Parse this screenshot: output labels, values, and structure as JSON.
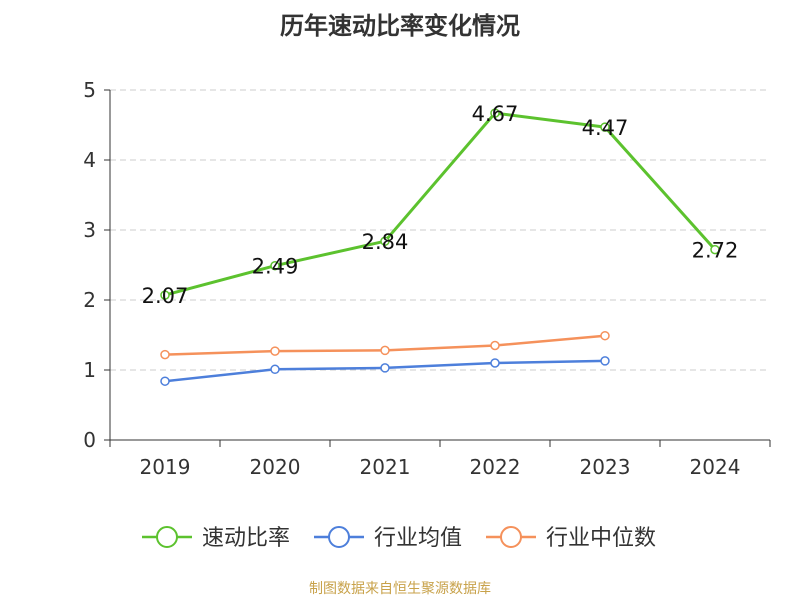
{
  "colors": {
    "background": "#ffffff",
    "axis": "#333333",
    "grid": "#cccccc",
    "source": "#c8a24a"
  },
  "source_text": "制图数据来自恒生聚源数据库",
  "chart_data": {
    "type": "line",
    "title": "历年速动比率变化情况",
    "xlabel": "",
    "ylabel": "",
    "categories": [
      "2019",
      "2020",
      "2021",
      "2022",
      "2023",
      "2024"
    ],
    "ylim": [
      0,
      5
    ],
    "yticks": [
      0,
      1,
      2,
      3,
      4,
      5
    ],
    "grid": true,
    "legend_position": "bottom",
    "series": [
      {
        "name": "速动比率",
        "color": "#5cc22e",
        "values": [
          2.07,
          2.49,
          2.84,
          4.67,
          4.47,
          2.72
        ],
        "data_labels": [
          "2.07",
          "2.49",
          "2.84",
          "4.67",
          "4.47",
          "2.72"
        ]
      },
      {
        "name": "行业均值",
        "color": "#4d7fdb",
        "values": [
          0.84,
          1.01,
          1.03,
          1.1,
          1.13,
          null
        ]
      },
      {
        "name": "行业中位数",
        "color": "#f5915b",
        "values": [
          1.22,
          1.27,
          1.28,
          1.35,
          1.49,
          null
        ]
      }
    ]
  }
}
